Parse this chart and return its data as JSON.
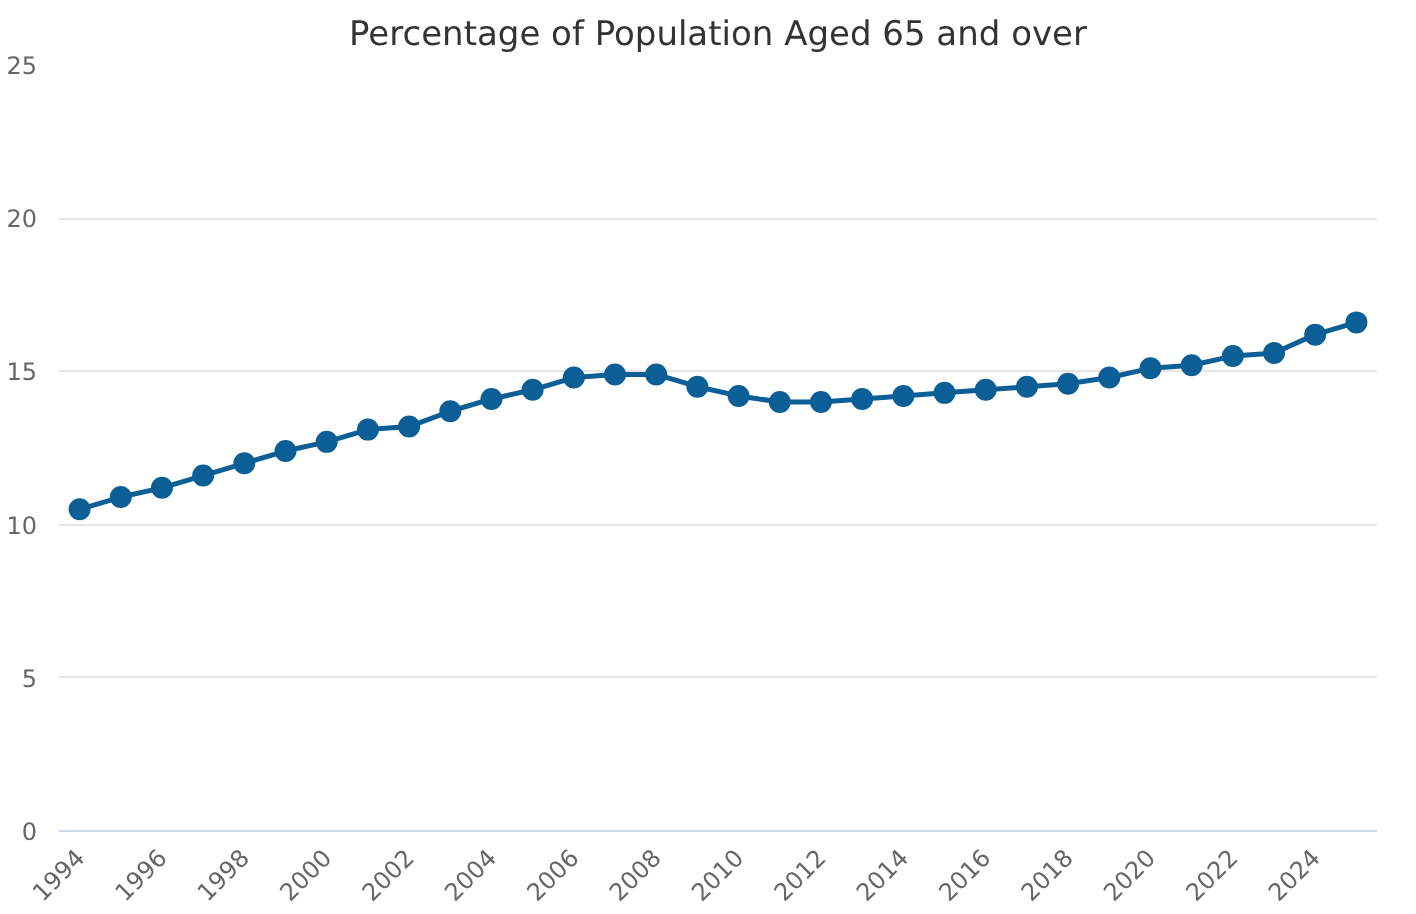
{
  "chart_data": {
    "type": "line",
    "title": "Percentage of Population Aged 65 and over",
    "categories": [
      "1994",
      null,
      "1996",
      null,
      "1998",
      null,
      "2000",
      null,
      "2002",
      null,
      "2004",
      null,
      "2006",
      null,
      "2008",
      null,
      "2010",
      null,
      "2012",
      null,
      "2014",
      null,
      "2016",
      null,
      "2018",
      null,
      "2020",
      null,
      "2022",
      null,
      "2024",
      null
    ],
    "series": [
      {
        "color": "#0b5f96",
        "values": [
          10.5,
          10.9,
          11.2,
          11.6,
          12.0,
          12.4,
          12.7,
          13.1,
          13.2,
          13.7,
          14.1,
          14.4,
          14.8,
          14.9,
          14.9,
          14.5,
          14.2,
          14.0,
          14.0,
          14.1,
          14.2,
          14.3,
          14.4,
          14.5,
          14.6,
          14.8,
          15.1,
          15.2,
          15.5,
          15.6,
          16.2,
          16.6
        ]
      }
    ],
    "ylim": [
      0,
      25
    ],
    "yticks": [
      0,
      5,
      10,
      15,
      20,
      25
    ],
    "grid": "y",
    "marker": "circle",
    "line_style": "solid"
  }
}
